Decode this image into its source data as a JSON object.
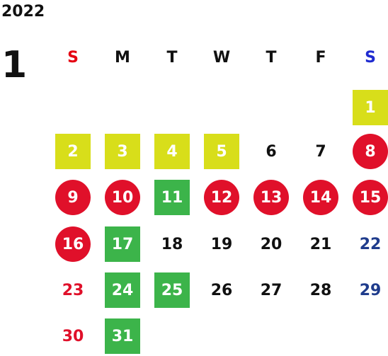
{
  "calendar": {
    "year": "2022",
    "month": "1",
    "weekdays": [
      "S",
      "M",
      "T",
      "W",
      "T",
      "F",
      "S"
    ],
    "weekday_colors": [
      "#e50012",
      "#111111",
      "#111111",
      "#111111",
      "#111111",
      "#111111",
      "#1f2bd0"
    ],
    "colors": {
      "yellow": "#d8de1a",
      "green": "#3cb44a",
      "red": "#e0102a",
      "sunday_text": "#e0102a",
      "saturday_text": "#1f3c8c",
      "plain_text": "#111111"
    },
    "days": [
      {
        "label": "1",
        "col": 6,
        "row": 0,
        "style": "yellow"
      },
      {
        "label": "2",
        "col": 0,
        "row": 1,
        "style": "yellow"
      },
      {
        "label": "3",
        "col": 1,
        "row": 1,
        "style": "yellow"
      },
      {
        "label": "4",
        "col": 2,
        "row": 1,
        "style": "yellow"
      },
      {
        "label": "5",
        "col": 3,
        "row": 1,
        "style": "yellow"
      },
      {
        "label": "6",
        "col": 4,
        "row": 1,
        "style": "plain"
      },
      {
        "label": "7",
        "col": 5,
        "row": 1,
        "style": "plain"
      },
      {
        "label": "8",
        "col": 6,
        "row": 1,
        "style": "red"
      },
      {
        "label": "9",
        "col": 0,
        "row": 2,
        "style": "red"
      },
      {
        "label": "10",
        "col": 1,
        "row": 2,
        "style": "red"
      },
      {
        "label": "11",
        "col": 2,
        "row": 2,
        "style": "green"
      },
      {
        "label": "12",
        "col": 3,
        "row": 2,
        "style": "red"
      },
      {
        "label": "13",
        "col": 4,
        "row": 2,
        "style": "red"
      },
      {
        "label": "14",
        "col": 5,
        "row": 2,
        "style": "red"
      },
      {
        "label": "15",
        "col": 6,
        "row": 2,
        "style": "red"
      },
      {
        "label": "16",
        "col": 0,
        "row": 3,
        "style": "red"
      },
      {
        "label": "17",
        "col": 1,
        "row": 3,
        "style": "green"
      },
      {
        "label": "18",
        "col": 2,
        "row": 3,
        "style": "plain"
      },
      {
        "label": "19",
        "col": 3,
        "row": 3,
        "style": "plain"
      },
      {
        "label": "20",
        "col": 4,
        "row": 3,
        "style": "plain"
      },
      {
        "label": "21",
        "col": 5,
        "row": 3,
        "style": "plain"
      },
      {
        "label": "22",
        "col": 6,
        "row": 3,
        "style": "saturday"
      },
      {
        "label": "23",
        "col": 0,
        "row": 4,
        "style": "sunday"
      },
      {
        "label": "24",
        "col": 1,
        "row": 4,
        "style": "green"
      },
      {
        "label": "25",
        "col": 2,
        "row": 4,
        "style": "green"
      },
      {
        "label": "26",
        "col": 3,
        "row": 4,
        "style": "plain"
      },
      {
        "label": "27",
        "col": 4,
        "row": 4,
        "style": "plain"
      },
      {
        "label": "28",
        "col": 5,
        "row": 4,
        "style": "plain"
      },
      {
        "label": "29",
        "col": 6,
        "row": 4,
        "style": "saturday"
      },
      {
        "label": "30",
        "col": 0,
        "row": 5,
        "style": "sunday"
      },
      {
        "label": "31",
        "col": 1,
        "row": 5,
        "style": "green"
      }
    ]
  }
}
